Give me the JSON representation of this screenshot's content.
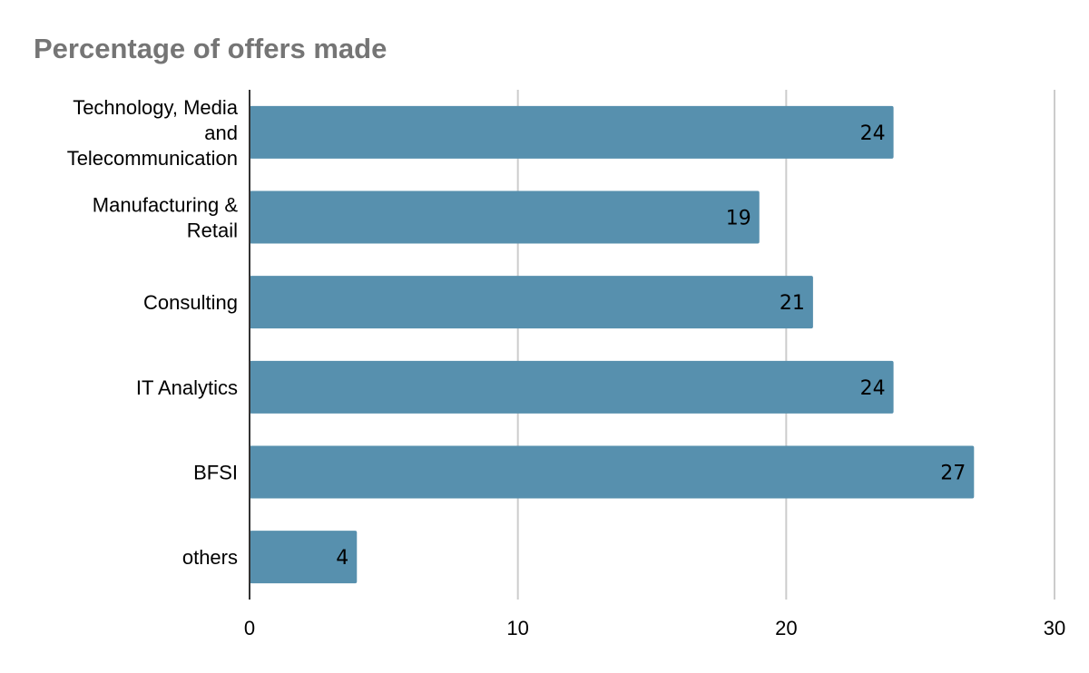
{
  "chart_data": {
    "type": "bar",
    "orientation": "horizontal",
    "title": "Percentage of offers made",
    "xlabel": "",
    "ylabel": "",
    "categories": [
      [
        "Technology, Media",
        "and",
        "Telecommunication"
      ],
      [
        "Manufacturing &",
        "Retail"
      ],
      [
        "Consulting"
      ],
      [
        "IT Analytics"
      ],
      [
        "BFSI"
      ],
      [
        "others"
      ]
    ],
    "values": [
      24,
      19,
      21,
      24,
      27,
      4
    ],
    "data_labels": [
      "24",
      "19",
      "21",
      "24",
      "27",
      "4"
    ],
    "xlim": [
      0,
      30
    ],
    "x_ticks": [
      0,
      10,
      20,
      30
    ],
    "x_tick_labels": [
      "0",
      "10",
      "20",
      "30"
    ],
    "grid": true,
    "bar_color": "#5790ae",
    "grid_color": "#cccccc",
    "title_color": "#757575"
  }
}
